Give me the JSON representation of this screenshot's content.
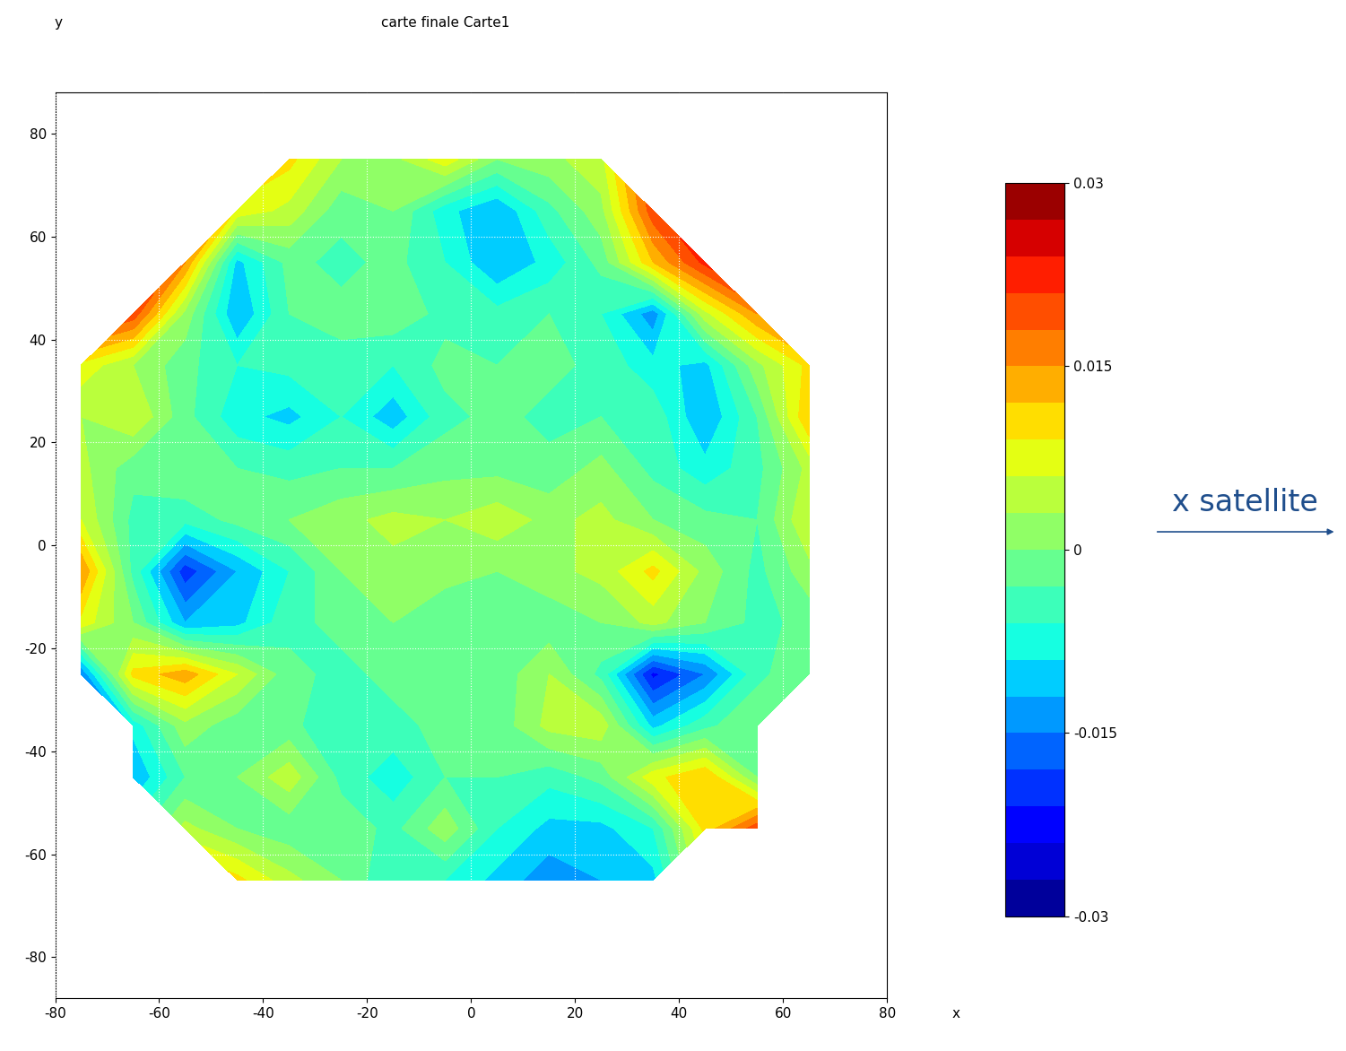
{
  "chart_data": {
    "type": "heatmap",
    "title": "carte finale Carte1",
    "x_label": "x",
    "y_label": "y",
    "annotation": "x satellite",
    "x": [
      -75,
      -65,
      -55,
      -45,
      -35,
      -25,
      -15,
      -5,
      5,
      15,
      25,
      35,
      45,
      55,
      65,
      75
    ],
    "y": [
      75,
      65,
      55,
      45,
      35,
      25,
      15,
      5,
      -5,
      -15,
      -25,
      -35,
      -45,
      -55,
      -65,
      -75
    ],
    "cells": [
      [
        null,
        null,
        null,
        null,
        0.01,
        0.003,
        0.002,
        0.008,
        0.0,
        0.002,
        0.005,
        null,
        null,
        null,
        null,
        null
      ],
      [
        null,
        null,
        null,
        0.008,
        0.005,
        -0.002,
        0.0,
        -0.008,
        -0.012,
        -0.004,
        0.002,
        0.02,
        null,
        null,
        null,
        null
      ],
      [
        null,
        null,
        0.015,
        -0.01,
        -0.002,
        -0.004,
        -0.002,
        -0.006,
        -0.012,
        -0.008,
        -0.002,
        0.012,
        0.022,
        null,
        null,
        null
      ],
      [
        null,
        0.02,
        0.002,
        -0.012,
        -0.003,
        -0.002,
        -0.001,
        -0.004,
        -0.005,
        -0.003,
        -0.006,
        -0.014,
        0.005,
        0.015,
        null,
        null
      ],
      [
        0.008,
        0.003,
        -0.002,
        -0.006,
        -0.005,
        -0.004,
        -0.006,
        -0.002,
        -0.003,
        -0.002,
        -0.004,
        -0.008,
        -0.01,
        0.002,
        0.01,
        null
      ],
      [
        0.003,
        0.006,
        -0.002,
        -0.008,
        -0.01,
        -0.006,
        -0.011,
        -0.004,
        -0.002,
        -0.004,
        -0.003,
        -0.004,
        -0.012,
        -0.003,
        0.012,
        null
      ],
      [
        0.004,
        -0.002,
        0.0,
        -0.003,
        -0.004,
        -0.003,
        -0.003,
        -0.001,
        -0.001,
        -0.002,
        0.001,
        -0.004,
        -0.008,
        -0.004,
        0.004,
        null
      ],
      [
        0.006,
        -0.004,
        -0.005,
        -0.002,
        0.0,
        0.002,
        0.004,
        0.003,
        0.005,
        0.002,
        0.004,
        0.0,
        -0.002,
        -0.003,
        0.006,
        null
      ],
      [
        0.015,
        -0.004,
        -0.02,
        -0.012,
        -0.006,
        0.0,
        0.002,
        0.001,
        0.0,
        0.002,
        0.004,
        0.01,
        0.002,
        -0.004,
        0.002,
        null
      ],
      [
        0.008,
        0.0,
        -0.012,
        -0.01,
        -0.004,
        -0.002,
        0.0,
        -0.002,
        -0.003,
        -0.002,
        0.0,
        0.004,
        0.0,
        -0.004,
        -0.002,
        null
      ],
      [
        -0.015,
        0.01,
        0.014,
        0.006,
        -0.002,
        -0.004,
        -0.002,
        -0.003,
        -0.002,
        0.003,
        -0.004,
        -0.022,
        -0.015,
        -0.004,
        0.0,
        null
      ],
      [
        null,
        -0.008,
        0.002,
        -0.002,
        -0.002,
        -0.006,
        -0.004,
        -0.002,
        -0.002,
        0.004,
        0.005,
        -0.01,
        -0.004,
        0.0,
        null,
        null
      ],
      [
        null,
        -0.012,
        -0.003,
        0.0,
        0.005,
        -0.004,
        -0.008,
        -0.003,
        -0.003,
        -0.005,
        -0.002,
        0.008,
        0.012,
        0.0,
        null,
        null
      ],
      [
        null,
        null,
        0.004,
        0.0,
        -0.002,
        -0.001,
        -0.004,
        0.002,
        -0.006,
        -0.01,
        -0.01,
        -0.006,
        0.01,
        0.02,
        null,
        null
      ],
      [
        null,
        null,
        null,
        0.01,
        0.004,
        0.0,
        -0.006,
        -0.006,
        -0.01,
        -0.014,
        -0.012,
        -0.01,
        null,
        null,
        null,
        null
      ],
      [
        null,
        null,
        null,
        null,
        null,
        null,
        null,
        null,
        null,
        null,
        null,
        null,
        null,
        null,
        null,
        null
      ]
    ],
    "colorbar_range": [
      -0.03,
      0.03
    ],
    "colorbar_ticks": [
      0.03,
      0.015,
      0,
      -0.015,
      -0.03
    ],
    "xlim": [
      -80,
      80
    ],
    "ylim": [
      -88,
      88
    ],
    "xticks": [
      -80,
      -60,
      -40,
      -20,
      0,
      20,
      40,
      60,
      80
    ],
    "yticks": [
      -80,
      -60,
      -40,
      -20,
      0,
      20,
      40,
      60,
      80
    ],
    "grid": true
  }
}
